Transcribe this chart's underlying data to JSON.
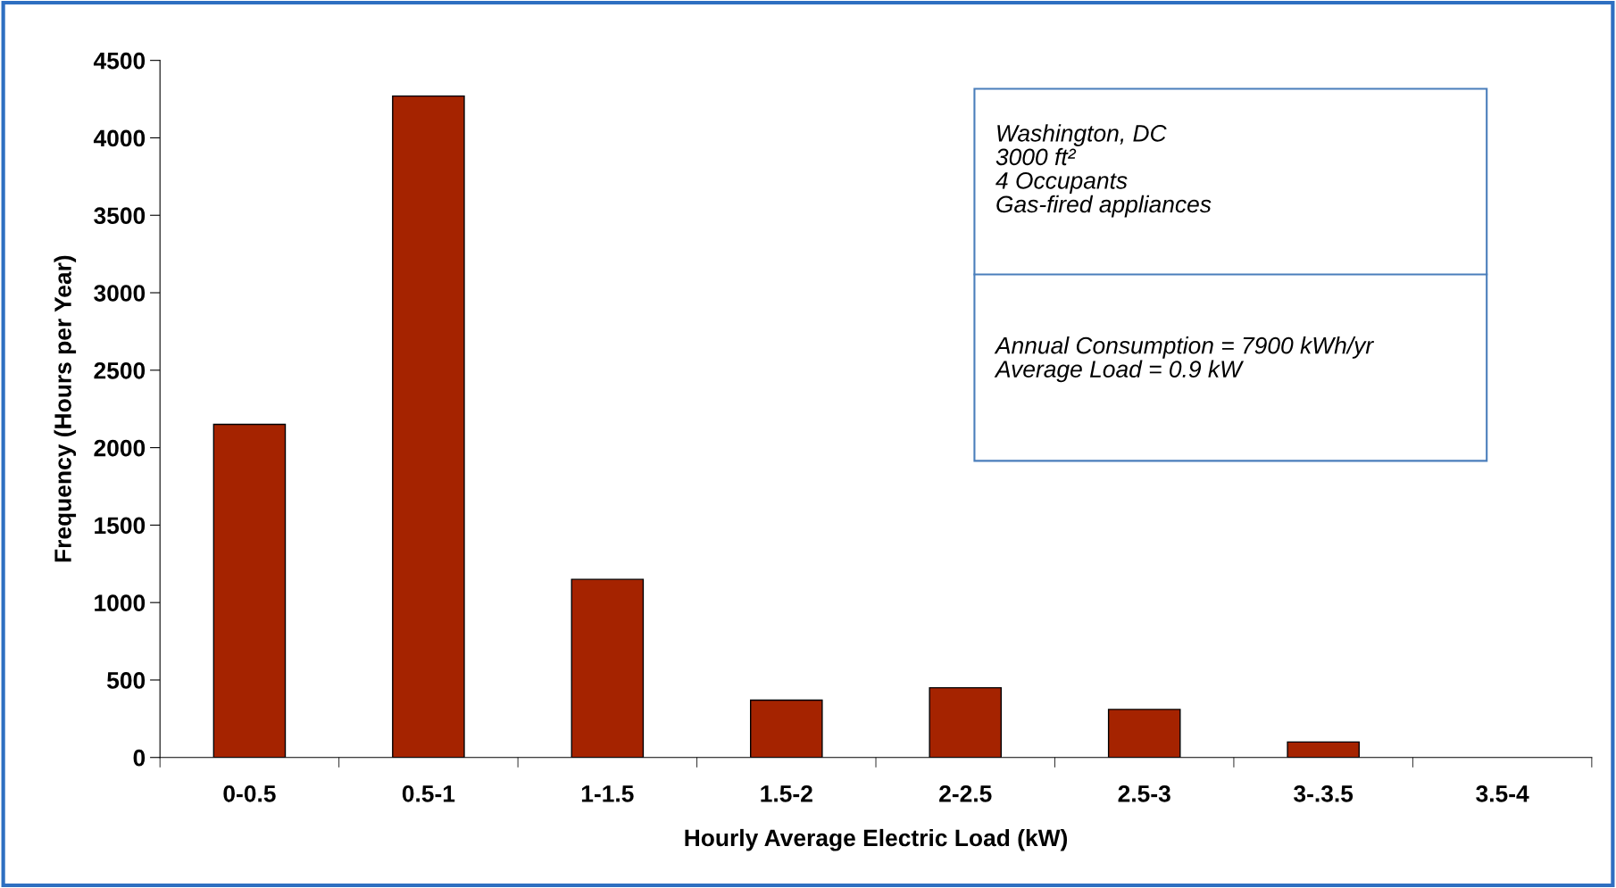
{
  "chart_data": {
    "type": "bar",
    "categories": [
      "0-0.5",
      "0.5-1",
      "1-1.5",
      "1.5-2",
      "2-2.5",
      "2.5-3",
      "3-.3.5",
      "3.5-4"
    ],
    "values": [
      2150,
      4270,
      1150,
      370,
      450,
      310,
      100,
      0
    ],
    "color": "#a52300",
    "xlabel": "Hourly Average Electric Load (kW)",
    "ylabel": "Frequency (Hours per Year)",
    "ylim": [
      0,
      4500
    ],
    "yticks": [
      0,
      500,
      1000,
      1500,
      2000,
      2500,
      3000,
      3500,
      4000,
      4500
    ],
    "grid": false,
    "legend": false,
    "annotations": [
      "Washington, DC\n3000 ft²\n4 Occupants\nGas-fired appliances",
      "Annual Consumption = 7900 kWh/yr\nAverage Load = 0.9 kW"
    ]
  }
}
